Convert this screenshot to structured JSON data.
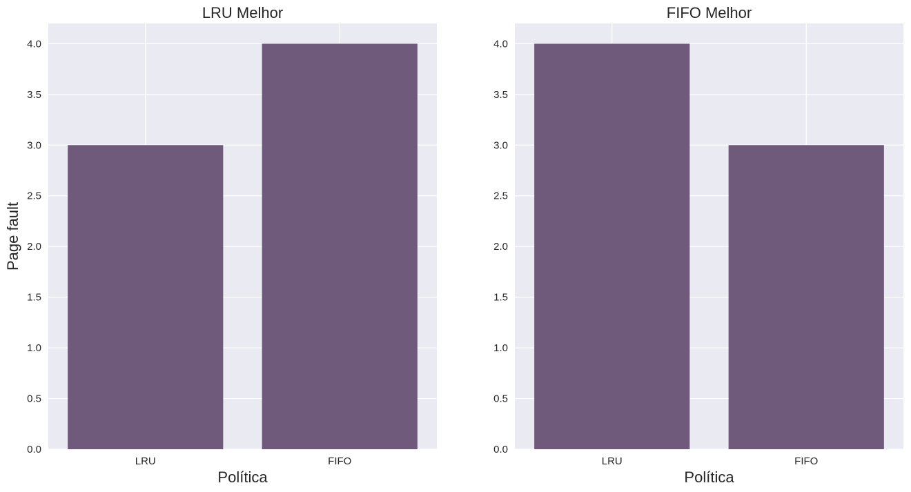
{
  "chart_data": [
    {
      "type": "bar",
      "title": "LRU Melhor",
      "xlabel": "Política",
      "ylabel": "Page fault",
      "categories": [
        "LRU",
        "FIFO"
      ],
      "values": [
        3,
        4
      ],
      "ylim": [
        0,
        4.2
      ],
      "yticks": [
        0.0,
        0.5,
        1.0,
        1.5,
        2.0,
        2.5,
        3.0,
        3.5,
        4.0
      ],
      "ytick_labels": [
        "0.0",
        "0.5",
        "1.0",
        "1.5",
        "2.0",
        "2.5",
        "3.0",
        "3.5",
        "4.0"
      ],
      "bar_color": "#6f5a7b",
      "background": "#eaeaf2",
      "grid": true
    },
    {
      "type": "bar",
      "title": "FIFO Melhor",
      "xlabel": "Política",
      "ylabel": "",
      "categories": [
        "LRU",
        "FIFO"
      ],
      "values": [
        4,
        3
      ],
      "ylim": [
        0,
        4.2
      ],
      "yticks": [
        0.0,
        0.5,
        1.0,
        1.5,
        2.0,
        2.5,
        3.0,
        3.5,
        4.0
      ],
      "ytick_labels": [
        "0.0",
        "0.5",
        "1.0",
        "1.5",
        "2.0",
        "2.5",
        "3.0",
        "3.5",
        "4.0"
      ],
      "bar_color": "#6f5a7b",
      "background": "#eaeaf2",
      "grid": true
    }
  ]
}
